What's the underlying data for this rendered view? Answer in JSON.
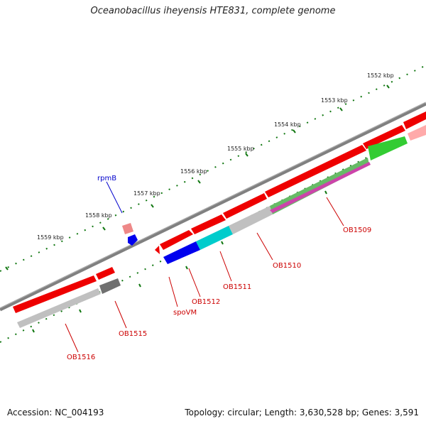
{
  "title": "Oceanobacillus iheyensis HTE831, complete genome",
  "footer": {
    "accession": "Accession: NC_004193",
    "summary": "Topology: circular; Length: 3,630,528 bp; Genes: 3,591"
  },
  "scale_labels": [
    "1552 kbp",
    "1553 kbp",
    "1554 kbp",
    "1555 kbp",
    "1556 kbp",
    "1557 kbp",
    "1558 kbp",
    "1559 kbp"
  ],
  "gene_labels": [
    "rpmB",
    "OB1509",
    "OB1510",
    "OB1511",
    "OB1512",
    "spoVM",
    "OB1515",
    "OB1516"
  ],
  "colors": {
    "backbone": "#808080",
    "forward_gene": "#ee0000",
    "reverse_gene": "#c0c0c0",
    "label_red": "#cc0000",
    "label_blue": "#0000cc",
    "ticks": "#117711"
  }
}
